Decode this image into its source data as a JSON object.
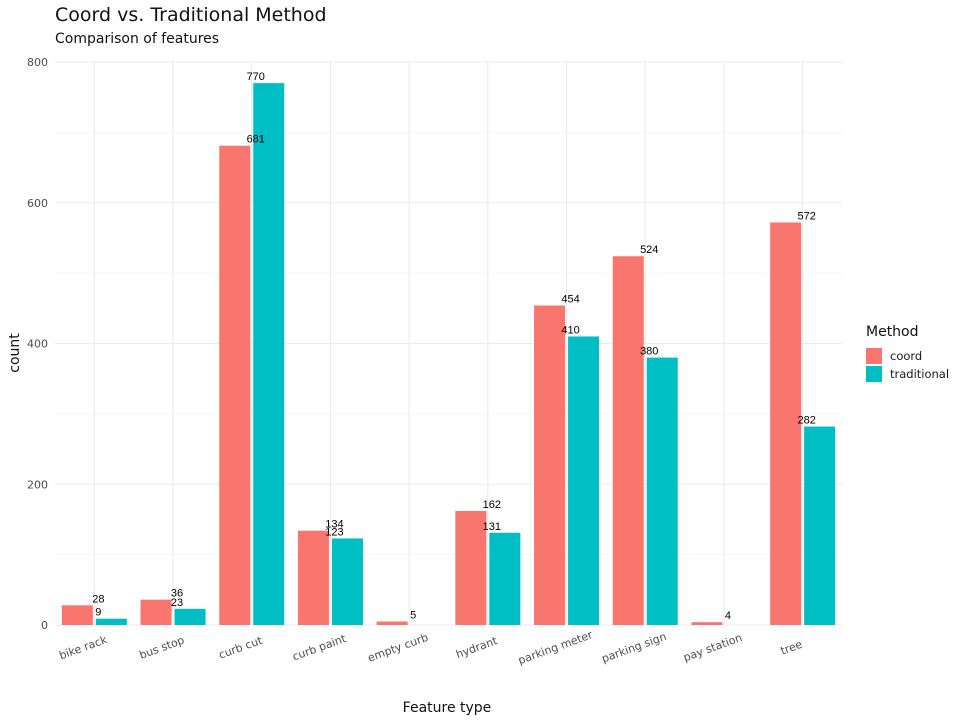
{
  "chart_data": {
    "type": "bar",
    "title": "Coord vs. Traditional Method",
    "subtitle": "Comparison of features",
    "xlabel": "Feature type",
    "ylabel": "count",
    "categories": [
      "bike rack",
      "bus stop",
      "curb cut",
      "curb paint",
      "empty curb",
      "hydrant",
      "parking meter",
      "parking sign",
      "pay station",
      "tree"
    ],
    "series": [
      {
        "name": "coord",
        "color": "#F8766D",
        "values": [
          28,
          36,
          681,
          134,
          5,
          162,
          454,
          524,
          4,
          572
        ]
      },
      {
        "name": "traditional",
        "color": "#00BFC4",
        "values": [
          9,
          23,
          770,
          123,
          null,
          131,
          410,
          380,
          null,
          282
        ]
      }
    ],
    "ylim": [
      0,
      800
    ],
    "yticks": [
      0,
      200,
      400,
      600,
      800
    ],
    "grid": true,
    "legend_title": "Method",
    "legend_position": "right"
  }
}
